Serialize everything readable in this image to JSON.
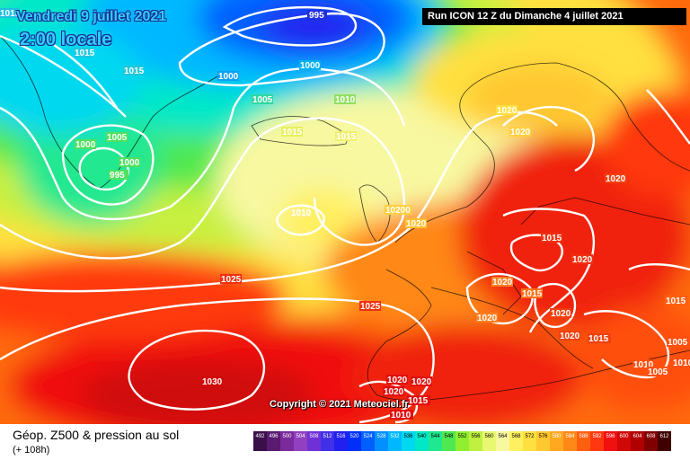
{
  "header": {
    "date": "Vendredi 9 juillet 2021",
    "time": "2:00 locale",
    "run": "Run ICON 12 Z du Dimanche 4 juillet 2021"
  },
  "copyright": "Copyright © 2021 Meteociel.fr",
  "legend": {
    "title": "Géop. Z500 & pression au sol",
    "subtitle": "(+ 108h)",
    "scale": [
      {
        "label": "492",
        "color": "#3a0f4a"
      },
      {
        "label": "496",
        "color": "#5a1a70"
      },
      {
        "label": "500",
        "color": "#7a2a9a"
      },
      {
        "label": "504",
        "color": "#9040c0"
      },
      {
        "label": "508",
        "color": "#7030d8"
      },
      {
        "label": "512",
        "color": "#4030e8"
      },
      {
        "label": "516",
        "color": "#2020f0"
      },
      {
        "label": "520",
        "color": "#0030f8"
      },
      {
        "label": "524",
        "color": "#0060ff"
      },
      {
        "label": "528",
        "color": "#0090ff"
      },
      {
        "label": "532",
        "color": "#00b8ff"
      },
      {
        "label": "536",
        "color": "#00d8f0"
      },
      {
        "label": "540",
        "color": "#00e8c8"
      },
      {
        "label": "544",
        "color": "#20e890"
      },
      {
        "label": "548",
        "color": "#50e850"
      },
      {
        "label": "552",
        "color": "#90f030"
      },
      {
        "label": "556",
        "color": "#c0f040"
      },
      {
        "label": "560",
        "color": "#e8f870"
      },
      {
        "label": "564",
        "color": "#f8f8a0"
      },
      {
        "label": "568",
        "color": "#fff060"
      },
      {
        "label": "572",
        "color": "#ffe040"
      },
      {
        "label": "576",
        "color": "#ffc830"
      },
      {
        "label": "580",
        "color": "#ffa820"
      },
      {
        "label": "584",
        "color": "#ff8818"
      },
      {
        "label": "588",
        "color": "#ff6010"
      },
      {
        "label": "592",
        "color": "#ff3810"
      },
      {
        "label": "596",
        "color": "#f01010"
      },
      {
        "label": "600",
        "color": "#d00808"
      },
      {
        "label": "604",
        "color": "#b00000"
      },
      {
        "label": "608",
        "color": "#800000"
      },
      {
        "label": "612",
        "color": "#400000"
      }
    ]
  },
  "isobar_labels": [
    {
      "text": "995"
    },
    {
      "text": "1015"
    },
    {
      "text": "1015"
    },
    {
      "text": "1015"
    },
    {
      "text": "1000"
    },
    {
      "text": "1000"
    },
    {
      "text": "1005"
    },
    {
      "text": "1010"
    },
    {
      "text": "1005"
    },
    {
      "text": "1000"
    },
    {
      "text": "1000"
    },
    {
      "text": "995"
    },
    {
      "text": "1015"
    },
    {
      "text": "1015"
    },
    {
      "text": "1020"
    },
    {
      "text": "1020"
    },
    {
      "text": "1020"
    },
    {
      "text": "1010"
    },
    {
      "text": "10200"
    },
    {
      "text": "1020"
    },
    {
      "text": "1015"
    },
    {
      "text": "1020"
    },
    {
      "text": "1020"
    },
    {
      "text": "1015"
    },
    {
      "text": "1020"
    },
    {
      "text": "1020"
    },
    {
      "text": "1020"
    },
    {
      "text": "1015"
    },
    {
      "text": "1025"
    },
    {
      "text": "1025"
    },
    {
      "text": "1030"
    },
    {
      "text": "1020"
    },
    {
      "text": "1020"
    },
    {
      "text": "1020"
    },
    {
      "text": "1015"
    },
    {
      "text": "1010"
    },
    {
      "text": "1010"
    },
    {
      "text": "1005"
    },
    {
      "text": "1010"
    },
    {
      "text": "1015"
    },
    {
      "text": "1005"
    }
  ]
}
